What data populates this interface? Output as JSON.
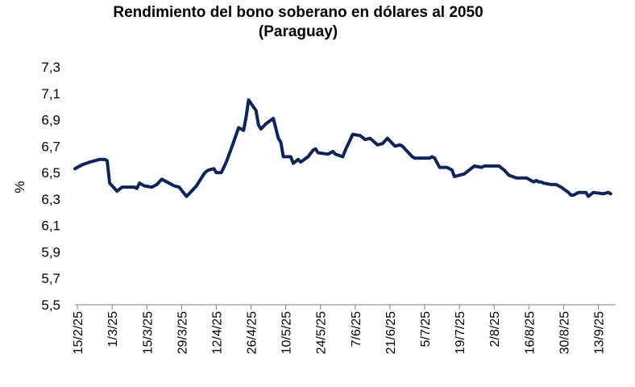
{
  "chart_data": {
    "type": "line",
    "title": "Rendimiento del bono soberano en dólares al 2050",
    "subtitle": "(Paraguay)",
    "xlabel": "",
    "ylabel": "%",
    "ylim": [
      5.5,
      7.3
    ],
    "yticks": [
      "7,3",
      "7,1",
      "6,9",
      "6,7",
      "6,5",
      "6,3",
      "6,1",
      "5,9",
      "5,7",
      "5,5"
    ],
    "xticks": [
      "15/2/25",
      "1/3/25",
      "15/3/25",
      "29/3/25",
      "12/4/25",
      "26/4/25",
      "10/5/25",
      "24/5/25",
      "7/6/25",
      "21/6/25",
      "5/7/25",
      "19/7/25",
      "2/8/25",
      "16/8/25",
      "30/8/25",
      "13/9/25"
    ],
    "grid": false,
    "legend": "none",
    "line_color": "#0d2461",
    "series": [
      {
        "x": [
          "2025-02-14",
          "2025-02-17",
          "2025-02-20",
          "2025-02-24",
          "2025-02-25",
          "2025-02-26",
          "2025-02-27",
          "2025-02-28",
          "2025-03-03",
          "2025-03-05",
          "2025-03-07",
          "2025-03-10",
          "2025-03-11",
          "2025-03-12",
          "2025-03-14",
          "2025-03-17",
          "2025-03-19",
          "2025-03-21",
          "2025-03-24",
          "2025-03-26",
          "2025-03-28",
          "2025-03-31",
          "2025-04-02",
          "2025-04-04",
          "2025-04-05",
          "2025-04-07",
          "2025-04-08",
          "2025-04-09",
          "2025-04-11",
          "2025-04-12",
          "2025-04-14",
          "2025-04-15",
          "2025-04-16",
          "2025-04-18",
          "2025-04-21",
          "2025-04-23",
          "2025-04-24",
          "2025-04-25",
          "2025-04-28",
          "2025-04-29",
          "2025-04-30",
          "2025-05-01",
          "2025-05-02",
          "2025-05-05",
          "2025-05-07",
          "2025-05-08",
          "2025-05-09",
          "2025-05-12",
          "2025-05-13",
          "2025-05-15",
          "2025-05-16",
          "2025-05-19",
          "2025-05-21",
          "2025-05-22",
          "2025-05-23",
          "2025-05-27",
          "2025-05-29",
          "2025-05-30",
          "2025-06-02",
          "2025-06-03",
          "2025-06-05",
          "2025-06-06",
          "2025-06-09",
          "2025-06-11",
          "2025-06-13",
          "2025-06-16",
          "2025-06-18",
          "2025-06-20",
          "2025-06-23",
          "2025-06-25",
          "2025-06-26",
          "2025-06-30",
          "2025-07-01",
          "2025-07-04",
          "2025-07-07",
          "2025-07-08",
          "2025-07-09",
          "2025-07-11",
          "2025-07-14",
          "2025-07-16",
          "2025-07-17",
          "2025-07-21",
          "2025-07-23",
          "2025-07-25",
          "2025-07-28",
          "2025-07-29",
          "2025-07-31",
          "2025-08-04",
          "2025-08-06",
          "2025-08-07",
          "2025-08-08",
          "2025-08-11",
          "2025-08-13",
          "2025-08-15",
          "2025-08-18",
          "2025-08-19",
          "2025-08-20",
          "2025-08-21",
          "2025-08-22",
          "2025-08-25",
          "2025-08-27",
          "2025-08-29",
          "2025-09-01",
          "2025-09-02",
          "2025-09-03",
          "2025-09-05",
          "2025-09-08",
          "2025-09-09",
          "2025-09-11",
          "2025-09-15",
          "2025-09-17",
          "2025-09-18"
        ],
        "values": [
          6.53,
          6.56,
          6.58,
          6.6,
          6.6,
          6.6,
          6.59,
          6.42,
          6.36,
          6.39,
          6.39,
          6.39,
          6.38,
          6.42,
          6.4,
          6.39,
          6.41,
          6.45,
          6.42,
          6.4,
          6.39,
          6.32,
          6.36,
          6.4,
          6.43,
          6.49,
          6.51,
          6.52,
          6.53,
          6.5,
          6.5,
          6.54,
          6.58,
          6.68,
          6.84,
          6.82,
          6.92,
          7.05,
          6.97,
          6.86,
          6.83,
          6.85,
          6.87,
          6.91,
          6.76,
          6.73,
          6.62,
          6.62,
          6.57,
          6.6,
          6.58,
          6.62,
          6.67,
          6.68,
          6.65,
          6.64,
          6.66,
          6.64,
          6.62,
          6.67,
          6.75,
          6.79,
          6.78,
          6.75,
          6.76,
          6.71,
          6.72,
          6.76,
          6.7,
          6.71,
          6.7,
          6.62,
          6.61,
          6.61,
          6.61,
          6.62,
          6.61,
          6.54,
          6.54,
          6.52,
          6.47,
          6.49,
          6.52,
          6.55,
          6.54,
          6.55,
          6.55,
          6.55,
          6.52,
          6.5,
          6.48,
          6.46,
          6.46,
          6.46,
          6.43,
          6.44,
          6.43,
          6.43,
          6.42,
          6.41,
          6.41,
          6.39,
          6.35,
          6.33,
          6.33,
          6.35,
          6.35,
          6.32,
          6.35,
          6.34,
          6.35,
          6.34
        ]
      }
    ]
  }
}
